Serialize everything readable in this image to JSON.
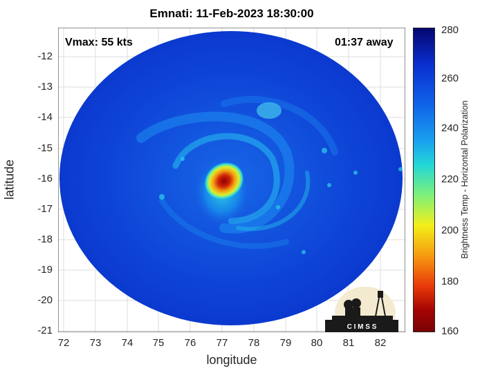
{
  "title": "Emnati: 11-Feb-2023 18:30:00",
  "vmax": "Vmax: 55 kts",
  "away": "01:37 away",
  "x_label": "longitude",
  "y_label": "latitude",
  "x_ticks": [
    "72",
    "73",
    "74",
    "75",
    "76",
    "77",
    "78",
    "79",
    "80",
    "81",
    "82"
  ],
  "y_ticks": [
    "-12",
    "-13",
    "-14",
    "-15",
    "-16",
    "-17",
    "-18",
    "-19",
    "-20",
    "-21"
  ],
  "colorbar": {
    "label": "Brightness Temp - Horizontal Polarization",
    "ticks": [
      "280",
      "260",
      "240",
      "220",
      "200",
      "180",
      "160"
    ]
  },
  "logo": {
    "text": "C I M S S"
  },
  "storm_center": {
    "lon": 76.9,
    "lat": -16.0
  }
}
